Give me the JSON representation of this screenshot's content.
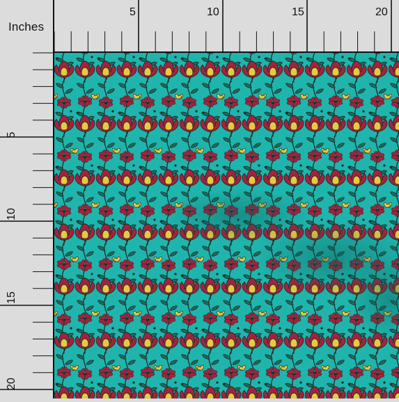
{
  "ruler": {
    "unit_label": "Inches",
    "top_numbers": [
      "5",
      "10",
      "15",
      "20"
    ],
    "left_numbers": [
      "5",
      "10",
      "15",
      "20"
    ]
  },
  "colors": {
    "background": "#dcdcdc",
    "ruler_line": "#111111",
    "fabric": "#1fb5ad",
    "fabric_shadow": "#138f88",
    "petal_red": "#a3233c",
    "petal_yellow": "#e7c940",
    "leaf": "#1e6b5c",
    "outline": "#1b2a2a"
  },
  "swatch": {
    "pattern": "vertical floral vine stripes",
    "icons": [
      "flower-icon",
      "heart-flower-icon",
      "leaf-icon"
    ]
  }
}
